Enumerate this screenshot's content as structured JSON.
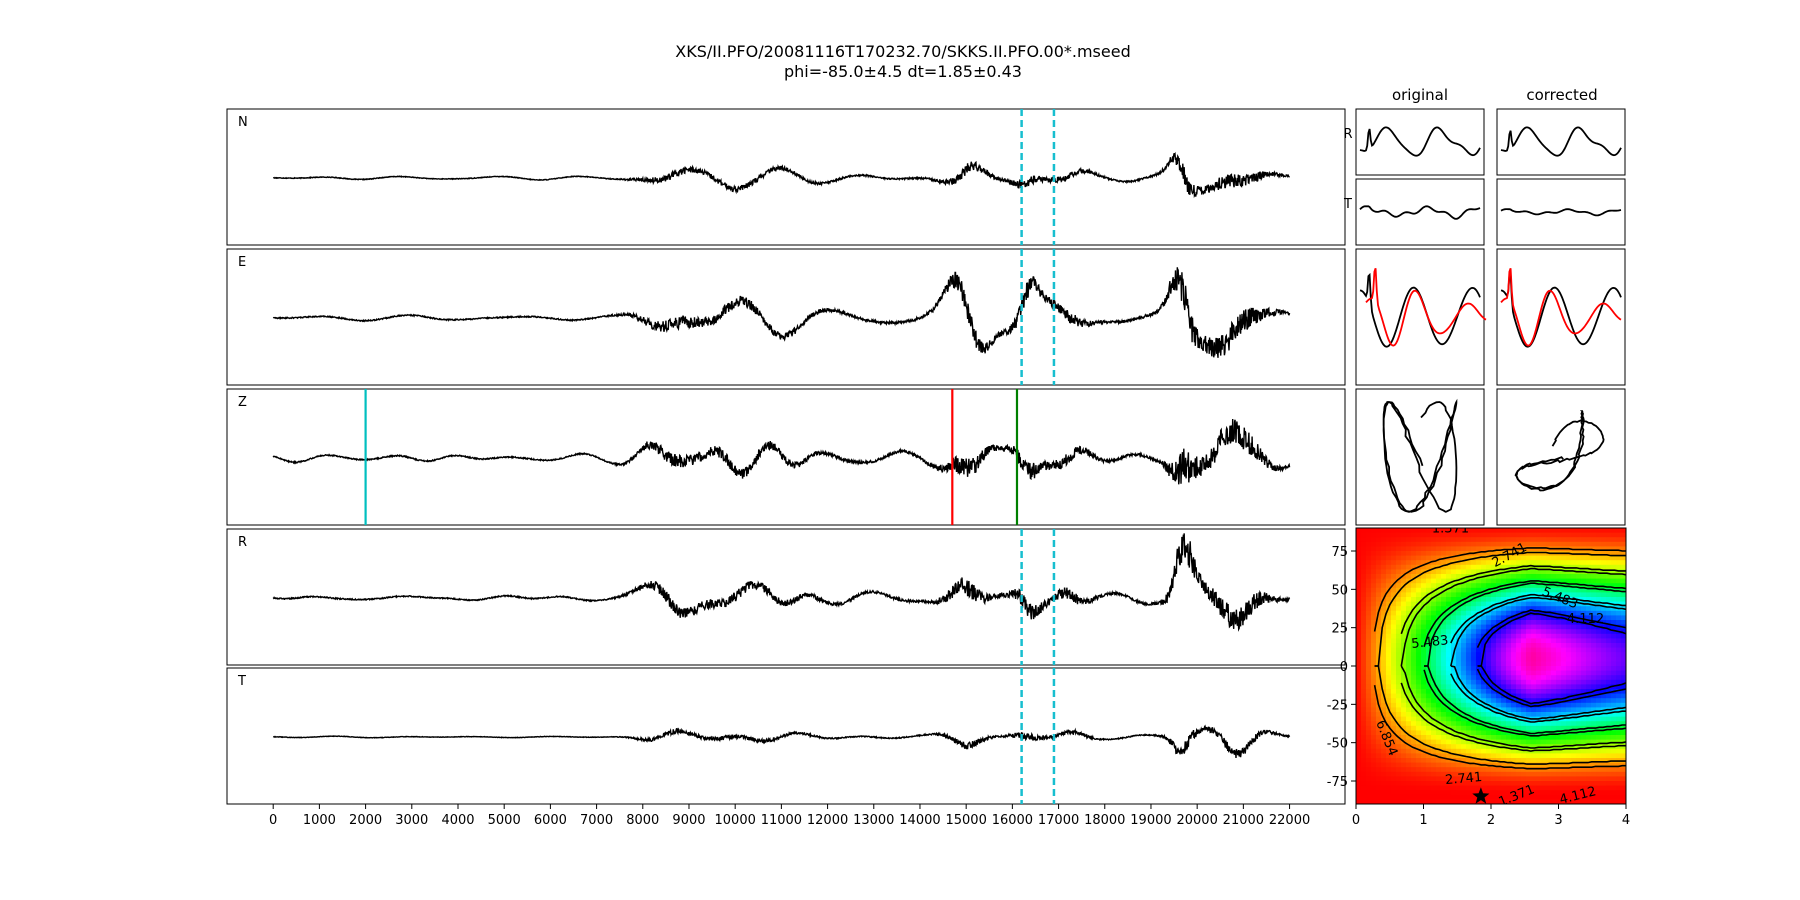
{
  "figure": {
    "title_line1": "XKS/II.PFO/20081116T170232.70/SKKS.II.PFO.00*.mseed",
    "title_line2": "phi=-85.0±4.5 dt=1.85±0.43",
    "col_original": "original",
    "col_corrected": "corrected"
  },
  "chart_data": [
    {
      "type": "line",
      "name": "seismograms",
      "channels": [
        "N",
        "E",
        "Z",
        "R",
        "T"
      ],
      "xlim": [
        -1000,
        23200
      ],
      "xticks": [
        0,
        1000,
        2000,
        3000,
        4000,
        5000,
        6000,
        7000,
        8000,
        9000,
        10000,
        11000,
        12000,
        13000,
        14000,
        15000,
        16000,
        17000,
        18000,
        19000,
        20000,
        21000,
        22000
      ],
      "x_start": 0,
      "x_end": 22000,
      "window_lines": [
        16200,
        16900
      ],
      "window_color": "#17becf",
      "z_markers": [
        {
          "x": 2000,
          "color": "#00bfbf"
        },
        {
          "x": 14700,
          "color": "#ff0000"
        },
        {
          "x": 16100,
          "color": "#008000"
        }
      ],
      "amplitude_scale": {
        "N": 0.55,
        "E": 1.0,
        "Z": 1.0,
        "R": 0.95,
        "T": 0.38
      }
    },
    {
      "type": "line",
      "name": "particle-motion-panels",
      "rows": [
        "R",
        "T"
      ],
      "columns": [
        "original",
        "corrected"
      ],
      "overlay_color": "#ff0000"
    },
    {
      "type": "heatmap",
      "name": "grid-search",
      "xlim": [
        0,
        4
      ],
      "ylim": [
        -90,
        90
      ],
      "xticks": [
        0,
        1,
        2,
        3,
        4
      ],
      "yticks": [
        -75,
        -50,
        -25,
        0,
        25,
        50,
        75
      ],
      "colormap": "hsv",
      "contour_labels": [
        "1.371",
        "2.741",
        "4.112",
        "5.483",
        "6.854"
      ],
      "best_fit": {
        "dt": 1.85,
        "phi": -85.0
      },
      "marker": "star"
    }
  ]
}
